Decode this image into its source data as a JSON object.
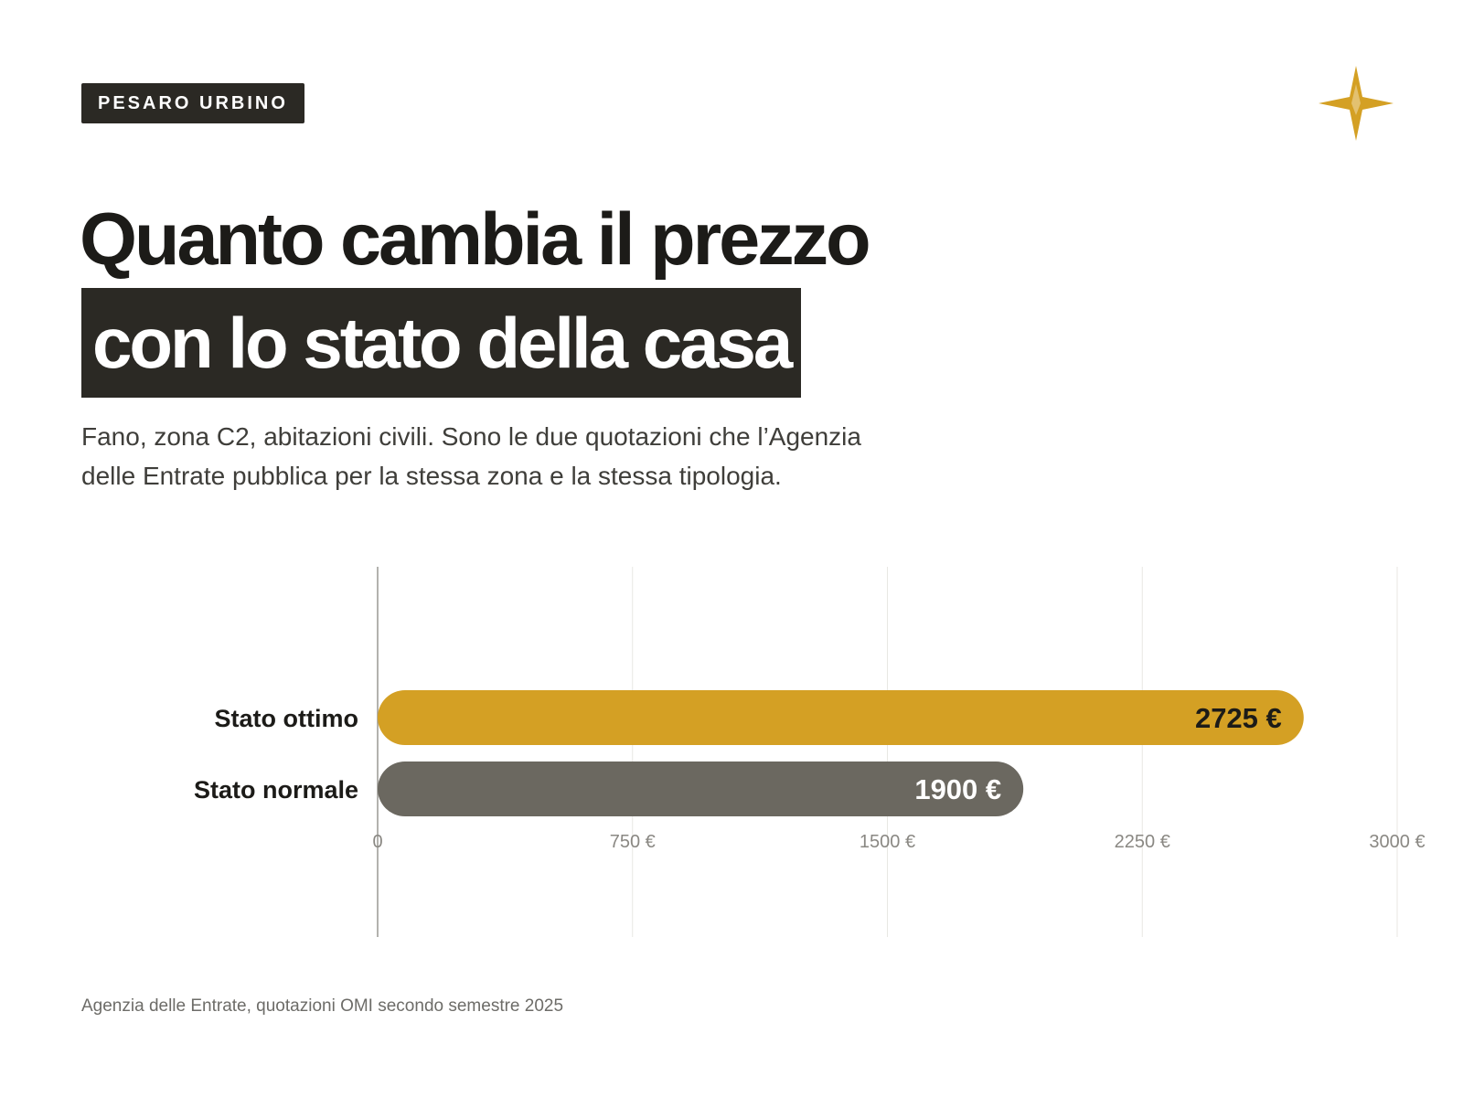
{
  "header": {
    "tag": "PESARO URBINO",
    "logo_icon": "four-point-star-logo-icon",
    "logo_color": "#d4a024"
  },
  "title": {
    "line1": "Quanto cambia il prezzo",
    "line2": "con lo stato della casa"
  },
  "subtitle": "Fano, zona C2, abitazioni civili. Sono le due quotazioni che l’Agenzia delle Entrate pubblica per la stessa zona e la stessa tipologia.",
  "source": "Agenzia delle Entrate, quotazioni OMI secondo semestre 2025",
  "chart_data": {
    "type": "bar",
    "orientation": "horizontal",
    "categories": [
      "Stato ottimo",
      "Stato normale"
    ],
    "values": [
      2725,
      1900
    ],
    "value_labels": [
      "2725 €",
      "1900 €"
    ],
    "colors": [
      "#d4a024",
      "#6b6860"
    ],
    "value_label_colors": [
      "#1c1b18",
      "#ffffff"
    ],
    "xlim": [
      0,
      3000
    ],
    "xticks": [
      0,
      750,
      1500,
      2250,
      3000
    ],
    "xtick_labels": [
      "0",
      "750 €",
      "1500 €",
      "2250 €",
      "3000 €"
    ],
    "grid": true,
    "legend": false
  }
}
